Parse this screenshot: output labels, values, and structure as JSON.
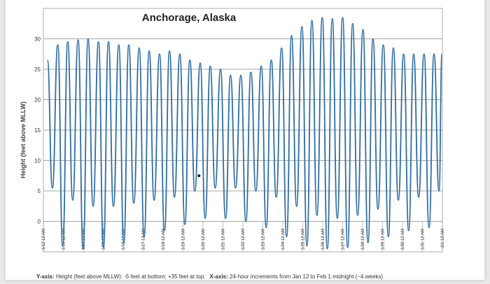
{
  "chart_data": {
    "type": "line",
    "title": "Anchorage, Alaska",
    "ylabel": "Height (feet above MLLW)",
    "xlabel": "",
    "ylim": [
      -5,
      35
    ],
    "yticks": [
      0,
      5,
      10,
      15,
      20,
      25,
      30
    ],
    "ytick_labels": [
      "0",
      "5",
      "10",
      "15",
      "20",
      "25",
      "30"
    ],
    "grid": true,
    "legend": "none",
    "line_color": "#2e6da4",
    "x_start_day": 12,
    "x_end_day": 32,
    "x_tick_labels": [
      "1/12 12 AM",
      "1/13 12 AM",
      "1/14 12 AM",
      "1/15 12 AM",
      "1/16 12 AM",
      "1/17 12 AM",
      "1/18 12 AM",
      "1/19 12 AM",
      "1/20 12 AM",
      "1/21 12 AM",
      "1/22 12 AM",
      "1/23 12 AM",
      "1/24 12 AM",
      "1/25 12 AM",
      "1/26 12 AM",
      "1/27 12 AM",
      "1/28 12 AM",
      "1/29 12 AM",
      "1/30 12 AM",
      "1/31 12 AM",
      "2/1 12 AM"
    ],
    "series": [
      {
        "values": [
          {
            "x": 12.2,
            "y": 26.5
          },
          {
            "x": 12.45,
            "y": 5.5
          },
          {
            "x": 12.72,
            "y": 29.0
          },
          {
            "x": 12.97,
            "y": -4.0
          },
          {
            "x": 13.22,
            "y": 29.5
          },
          {
            "x": 13.47,
            "y": 3.5
          },
          {
            "x": 13.74,
            "y": 29.8
          },
          {
            "x": 13.99,
            "y": -4.5
          },
          {
            "x": 14.24,
            "y": 30.0
          },
          {
            "x": 14.49,
            "y": 2.5
          },
          {
            "x": 14.76,
            "y": 29.5
          },
          {
            "x": 15.01,
            "y": -4.3
          },
          {
            "x": 15.26,
            "y": 29.5
          },
          {
            "x": 15.51,
            "y": 2.5
          },
          {
            "x": 15.78,
            "y": 29.0
          },
          {
            "x": 16.03,
            "y": -3.5
          },
          {
            "x": 16.28,
            "y": 29.0
          },
          {
            "x": 16.53,
            "y": 3.0
          },
          {
            "x": 16.8,
            "y": 28.5
          },
          {
            "x": 17.05,
            "y": -2.5
          },
          {
            "x": 17.3,
            "y": 28.0
          },
          {
            "x": 17.55,
            "y": 3.5
          },
          {
            "x": 17.82,
            "y": 27.5
          },
          {
            "x": 18.07,
            "y": -1.5
          },
          {
            "x": 18.32,
            "y": 28.0
          },
          {
            "x": 18.57,
            "y": 4.0
          },
          {
            "x": 18.84,
            "y": 27.5
          },
          {
            "x": 19.09,
            "y": -0.5
          },
          {
            "x": 19.34,
            "y": 26.5
          },
          {
            "x": 19.59,
            "y": 5.0
          },
          {
            "x": 19.86,
            "y": 26.0
          },
          {
            "x": 20.11,
            "y": 0.5
          },
          {
            "x": 20.36,
            "y": 25.5
          },
          {
            "x": 20.61,
            "y": 5.5
          },
          {
            "x": 20.88,
            "y": 25.0
          },
          {
            "x": 21.13,
            "y": 0.5
          },
          {
            "x": 21.38,
            "y": 24.0
          },
          {
            "x": 21.63,
            "y": 5.5
          },
          {
            "x": 21.9,
            "y": 24.0
          },
          {
            "x": 22.15,
            "y": 0.0
          },
          {
            "x": 22.4,
            "y": 24.5
          },
          {
            "x": 22.65,
            "y": 5.0
          },
          {
            "x": 22.92,
            "y": 25.5
          },
          {
            "x": 23.17,
            "y": -1.0
          },
          {
            "x": 23.42,
            "y": 26.5
          },
          {
            "x": 23.67,
            "y": 4.0
          },
          {
            "x": 23.94,
            "y": 28.5
          },
          {
            "x": 24.19,
            "y": -2.5
          },
          {
            "x": 24.44,
            "y": 30.5
          },
          {
            "x": 24.69,
            "y": 2.5
          },
          {
            "x": 24.96,
            "y": 32.0
          },
          {
            "x": 25.21,
            "y": -4.0
          },
          {
            "x": 25.46,
            "y": 33.0
          },
          {
            "x": 25.71,
            "y": 1.0
          },
          {
            "x": 25.98,
            "y": 33.5
          },
          {
            "x": 26.23,
            "y": -4.5
          },
          {
            "x": 26.48,
            "y": 33.3
          },
          {
            "x": 26.73,
            "y": 0.5
          },
          {
            "x": 27.0,
            "y": 33.5
          },
          {
            "x": 27.25,
            "y": -4.3
          },
          {
            "x": 27.5,
            "y": 32.5
          },
          {
            "x": 27.75,
            "y": 1.0
          },
          {
            "x": 28.02,
            "y": 31.5
          },
          {
            "x": 28.27,
            "y": -3.5
          },
          {
            "x": 28.52,
            "y": 30.0
          },
          {
            "x": 28.77,
            "y": 2.0
          },
          {
            "x": 29.04,
            "y": 29.0
          },
          {
            "x": 29.29,
            "y": -2.5
          },
          {
            "x": 29.54,
            "y": 28.5
          },
          {
            "x": 29.79,
            "y": 3.5
          },
          {
            "x": 30.06,
            "y": 27.5
          },
          {
            "x": 30.31,
            "y": -1.5
          },
          {
            "x": 30.56,
            "y": 27.5
          },
          {
            "x": 30.81,
            "y": 4.0
          },
          {
            "x": 31.08,
            "y": 27.5
          },
          {
            "x": 31.33,
            "y": -1.0
          },
          {
            "x": 31.58,
            "y": 27.5
          },
          {
            "x": 31.83,
            "y": 5.0
          },
          {
            "x": 31.98,
            "y": 27.5
          }
        ]
      }
    ],
    "annotations": [
      {
        "x": 19.8,
        "y": 7.5,
        "text": "•"
      }
    ]
  },
  "caption": {
    "y_prefix": "Y-axis:",
    "y_text": " Height (feet above MLLW): -5 feet at bottom; +35 feet at top.",
    "x_prefix": "X-axis:",
    "x_text": " 24-hour increments from Jan 12 to Feb 1 midnight (~4 weeks)"
  }
}
